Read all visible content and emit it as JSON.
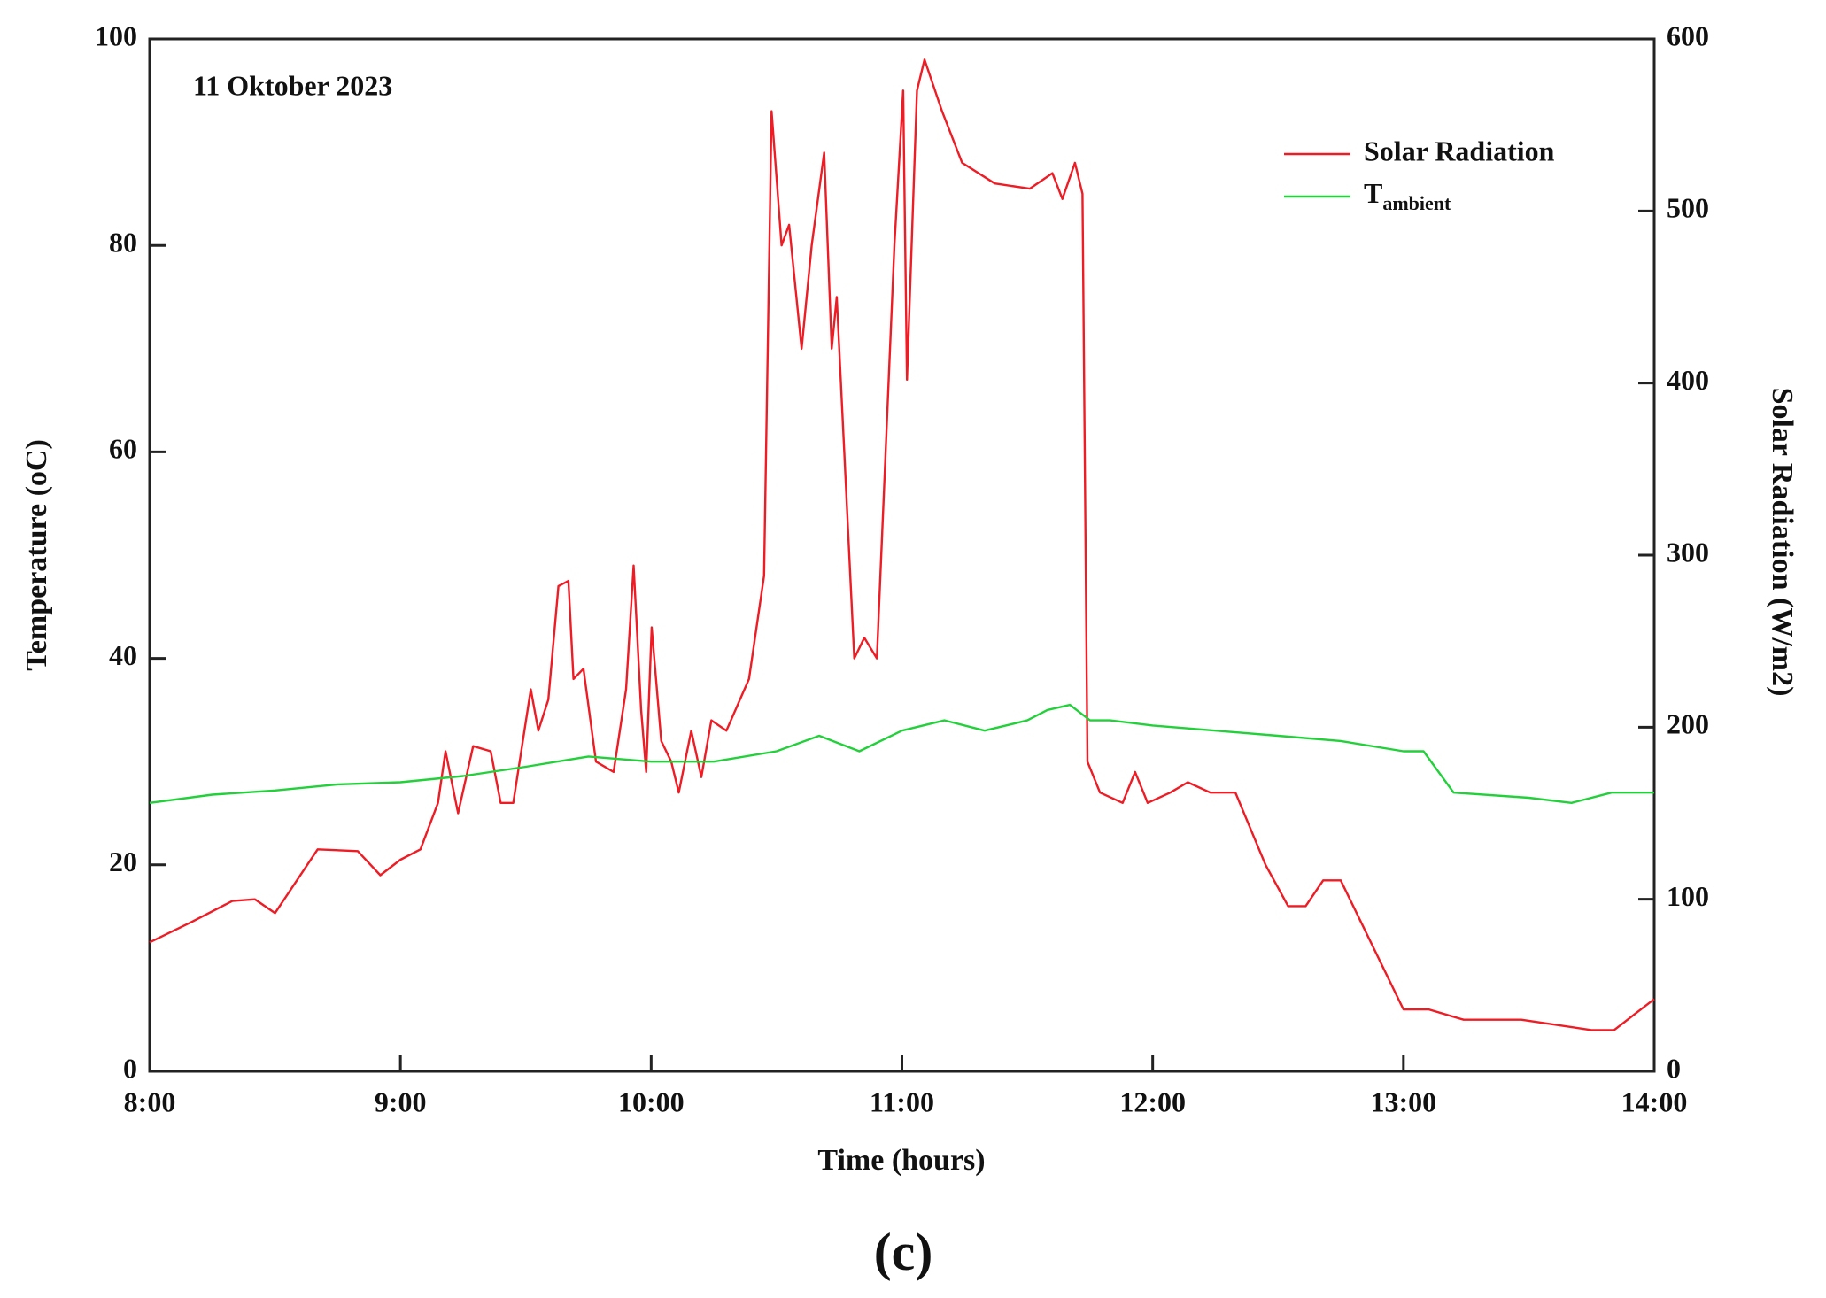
{
  "chart_data": {
    "type": "line",
    "annotation": "11 Oktober 2023",
    "caption": "(c)",
    "x_label": "Time (hours)",
    "y_label": "Temperature (oC)",
    "y2_label": "Solar Radiation (W/m2)",
    "xlim": [
      8,
      14
    ],
    "xticks": [
      {
        "value": 8,
        "label": "8:00"
      },
      {
        "value": 9,
        "label": "9:00"
      },
      {
        "value": 10,
        "label": "10:00"
      },
      {
        "value": 11,
        "label": "11:00"
      },
      {
        "value": 12,
        "label": "12:00"
      },
      {
        "value": 13,
        "label": "13:00"
      },
      {
        "value": 14,
        "label": "14:00"
      }
    ],
    "ylim": [
      0,
      100
    ],
    "yticks": [
      0,
      20,
      40,
      60,
      80,
      100
    ],
    "y2lim": [
      0,
      600
    ],
    "y2ticks": [
      0,
      100,
      200,
      300,
      400,
      500,
      600
    ],
    "legend": "upper right",
    "series": [
      {
        "name": "Solar Radiation",
        "color": "#ee1c25",
        "axis": "y2",
        "x": [
          8,
          8.17,
          8.33,
          8.42,
          8.5,
          8.67,
          8.83,
          8.92,
          9,
          9.08,
          9.15,
          9.18,
          9.23,
          9.29,
          9.36,
          9.4,
          9.45,
          9.52,
          9.55,
          9.59,
          9.63,
          9.67,
          9.69,
          9.73,
          9.78,
          9.85,
          9.9,
          9.93,
          9.96,
          9.98,
          10.002,
          10.04,
          10.08,
          10.11,
          10.16,
          10.2,
          10.24,
          10.3,
          10.39,
          10.45,
          10.48,
          10.52,
          10.55,
          10.6,
          10.64,
          10.69,
          10.72,
          10.74,
          10.81,
          10.85,
          10.9,
          10.97,
          11.005,
          11.02,
          11.06,
          11.09,
          11.16,
          11.24,
          11.37,
          11.51,
          11.6,
          11.64,
          11.69,
          11.72,
          11.74,
          11.79,
          11.88,
          11.93,
          11.98,
          12.07,
          12.14,
          12.23,
          12.33,
          12.45,
          12.54,
          12.61,
          12.68,
          12.75,
          13,
          13.1,
          13.24,
          13.47,
          13.75,
          13.84,
          14
        ],
        "values": [
          75,
          87,
          99,
          100,
          92,
          129,
          128,
          114,
          123,
          129,
          156,
          186,
          150,
          189,
          186,
          156,
          156,
          222,
          198,
          216,
          282,
          285,
          228,
          234,
          180,
          174,
          222,
          294,
          210,
          174,
          258,
          192,
          180,
          162,
          198,
          171,
          204,
          198,
          228,
          288,
          558,
          480,
          492,
          420,
          480,
          534,
          420,
          450,
          240,
          252,
          240,
          480,
          570,
          402,
          570,
          588,
          558,
          528,
          516,
          513,
          522,
          507,
          528,
          510,
          180,
          162,
          156,
          174,
          156,
          162,
          168,
          162,
          162,
          120,
          96,
          96,
          111,
          111,
          36,
          36,
          30,
          30,
          24,
          24,
          42
        ]
      },
      {
        "name": "Tambient",
        "color": "#22d03a",
        "x": [
          8,
          8.25,
          8.5,
          8.75,
          9,
          9.25,
          9.5,
          9.75,
          10,
          10.25,
          10.5,
          10.67,
          10.83,
          11,
          11.17,
          11.33,
          11.5,
          11.58,
          11.67,
          11.75,
          11.83,
          12,
          12.25,
          12.5,
          12.75,
          13,
          13.08,
          13.2,
          13.5,
          13.67,
          13.83,
          14
        ],
        "values": [
          26,
          26.8,
          27.2,
          27.8,
          28,
          28.6,
          29.5,
          30.5,
          30,
          30,
          31,
          32.5,
          31,
          33,
          34,
          33,
          34,
          35,
          35.5,
          34,
          34,
          33.5,
          33,
          32.5,
          32,
          31,
          31,
          27,
          26.5,
          26,
          27,
          27
        ]
      }
    ]
  }
}
